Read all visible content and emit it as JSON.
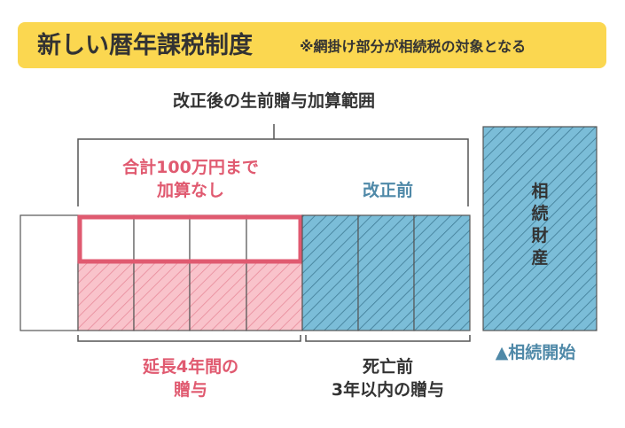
{
  "title": {
    "main": "新しい暦年課税制度",
    "note": "※網掛け部分が相続税の対象となる"
  },
  "labels": {
    "range_top": "改正後の生前贈与加算範囲",
    "exempt_line1": "合計100万円まで",
    "exempt_line2": "加算なし",
    "before_reform": "改正前",
    "estate_chars": [
      "相",
      "続",
      "財",
      "産"
    ],
    "extended_line1": "延長4年間の",
    "extended_line2": "贈与",
    "within_line1": "死亡前",
    "within_line2": "3年以内の贈与",
    "inheritance_start": "▲相続開始"
  },
  "colors": {
    "title_bg": "#fbd750",
    "red": "#e05a70",
    "pink_fill": "#f9c3cb",
    "blue_text": "#4f89a8",
    "blue_fill": "#7bbdd8",
    "text_dark": "#333333"
  }
}
